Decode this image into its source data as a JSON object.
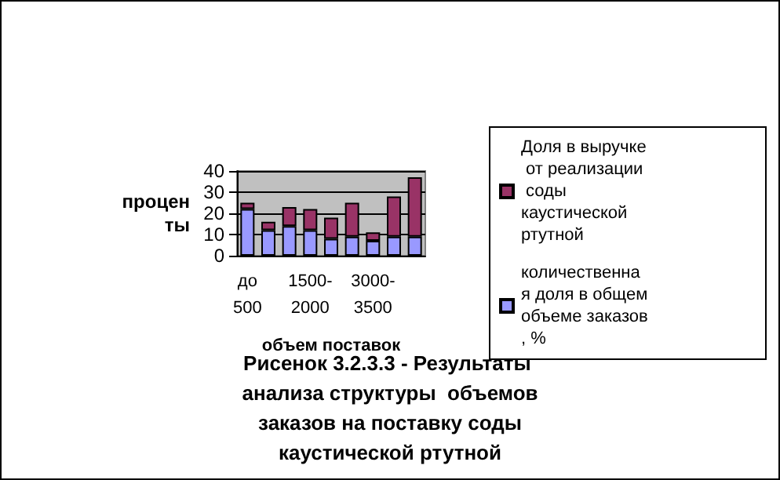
{
  "chart_data": {
    "type": "bar",
    "title": "Рисенок 3.2.3.3 - Результаты анализа структуры  объемов заказов на поставку соды каустической ртутной",
    "xlabel": "объем поставок",
    "ylabel": "процен ты",
    "categories": [
      "до 500",
      null,
      null,
      "1500-2000",
      null,
      null,
      "3000-3500",
      null,
      null
    ],
    "stacked": true,
    "series": [
      {
        "name": "количественная доля в общем объеме заказов, %",
        "color": "#9999ff",
        "values": [
          22,
          12,
          14,
          12,
          8,
          9,
          7,
          9,
          9
        ]
      },
      {
        "name": "Доля в выручке от реализации соды каустической ртутной",
        "color": "#993366",
        "values": [
          3,
          4,
          9,
          10,
          10,
          16,
          4,
          19,
          28
        ]
      }
    ],
    "ylim": [
      0,
      40
    ],
    "yticks": [
      0,
      10,
      20,
      30,
      40
    ],
    "grid": "y",
    "legend": "right"
  }
}
